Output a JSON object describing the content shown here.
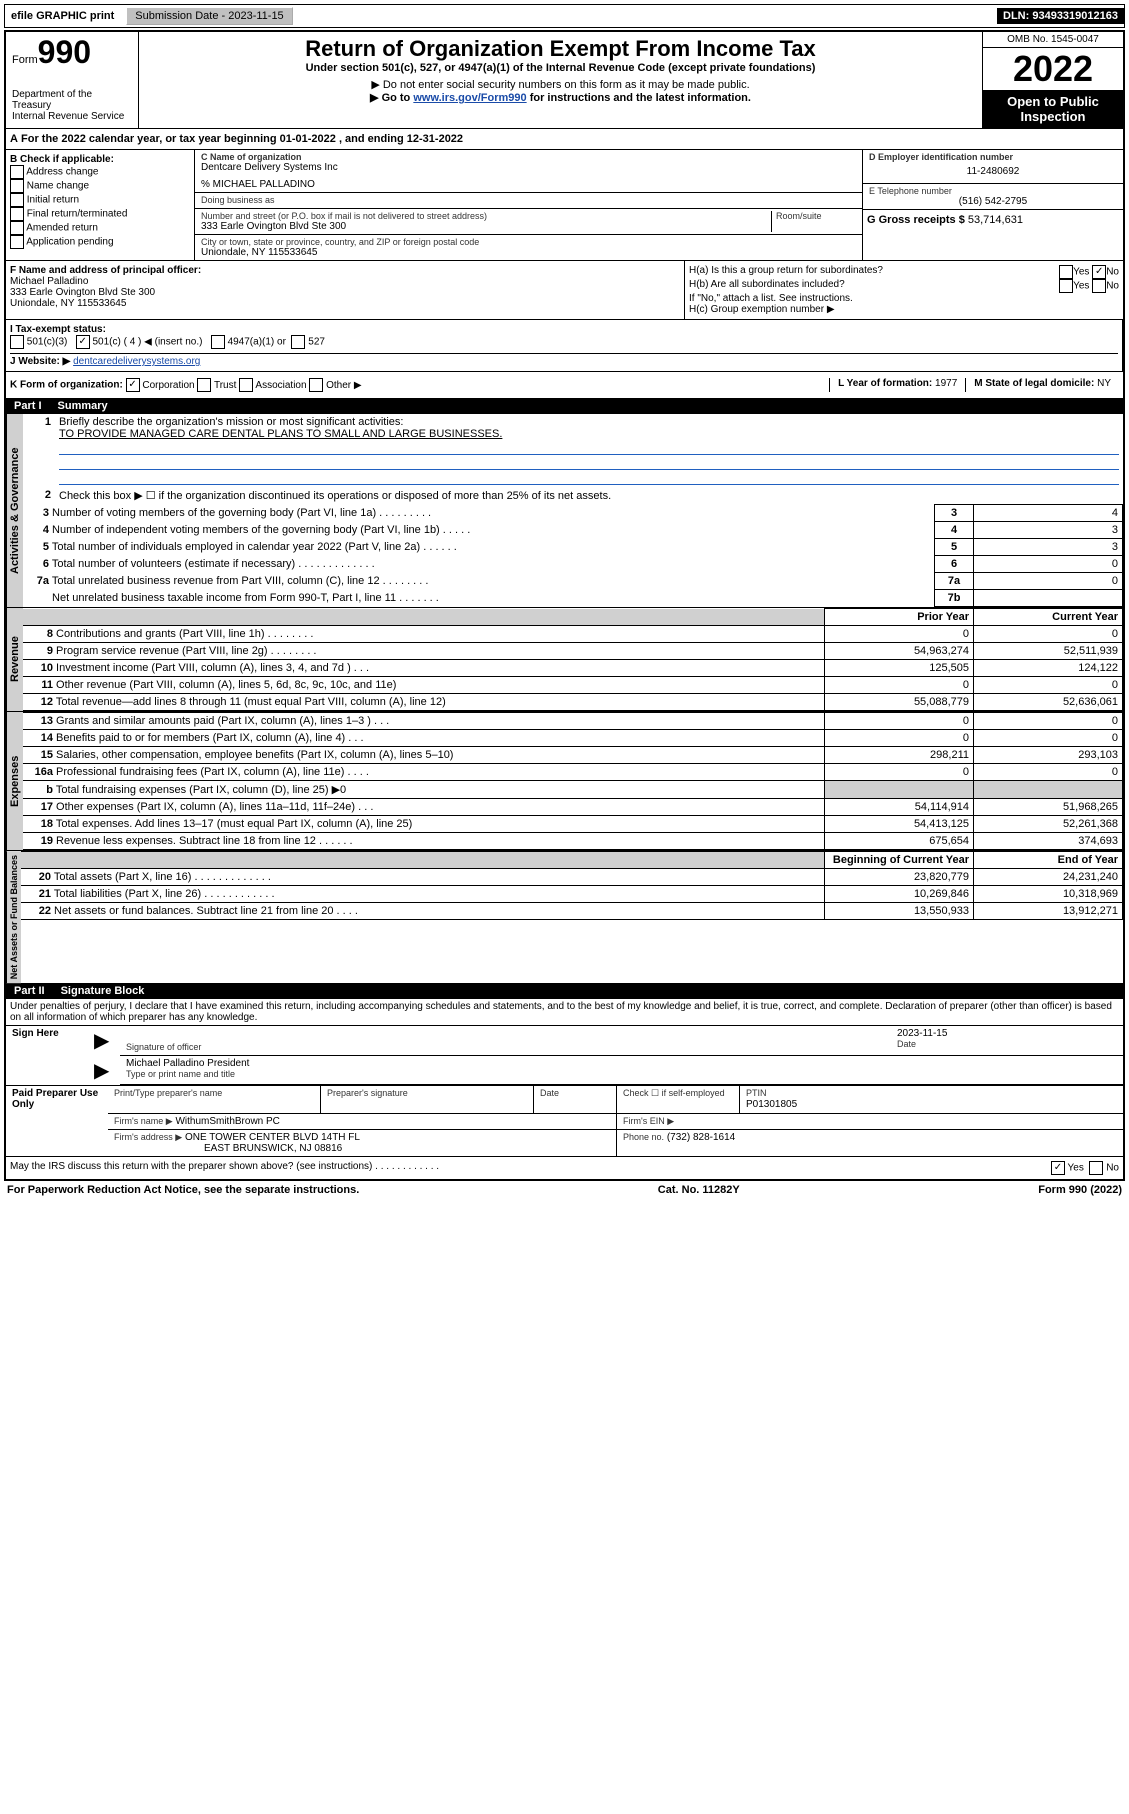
{
  "topbar": {
    "efile": "efile GRAPHIC print",
    "submission_label": "Submission Date - 2023-11-15",
    "dln": "DLN: 93493319012163"
  },
  "header": {
    "form_label": "Form",
    "form_number": "990",
    "dept": "Department of the Treasury",
    "irs": "Internal Revenue Service",
    "title": "Return of Organization Exempt From Income Tax",
    "subtitle": "Under section 501(c), 527, or 4947(a)(1) of the Internal Revenue Code (except private foundations)",
    "note1": "▶ Do not enter social security numbers on this form as it may be made public.",
    "note2_pre": "▶ Go to ",
    "note2_link": "www.irs.gov/Form990",
    "note2_post": " for instructions and the latest information.",
    "omb": "OMB No. 1545-0047",
    "year": "2022",
    "open": "Open to Public Inspection"
  },
  "period": {
    "line": "For the 2022 calendar year, or tax year beginning 01-01-2022   , and ending 12-31-2022"
  },
  "boxB": {
    "label": "B Check if applicable:",
    "items": [
      "Address change",
      "Name change",
      "Initial return",
      "Final return/terminated",
      "Amended return",
      "Application pending"
    ]
  },
  "boxC": {
    "label": "C Name of organization",
    "name": "Dentcare Delivery Systems Inc",
    "care_of": "% MICHAEL PALLADINO",
    "dba_label": "Doing business as",
    "street_label": "Number and street (or P.O. box if mail is not delivered to street address)",
    "room_label": "Room/suite",
    "street": "333 Earle Ovington Blvd Ste 300",
    "city_label": "City or town, state or province, country, and ZIP or foreign postal code",
    "city": "Uniondale, NY  115533645"
  },
  "boxD": {
    "label": "D Employer identification number",
    "value": "11-2480692"
  },
  "boxE": {
    "label": "E Telephone number",
    "value": "(516) 542-2795"
  },
  "boxG": {
    "label": "G Gross receipts $",
    "value": "53,714,631"
  },
  "boxF": {
    "label": "F Name and address of principal officer:",
    "name": "Michael Palladino",
    "addr1": "333 Earle Ovington Blvd Ste 300",
    "addr2": "Uniondale, NY  115533645"
  },
  "boxH": {
    "a": "H(a)  Is this a group return for subordinates?",
    "b": "H(b)  Are all subordinates included?",
    "b_note": "If \"No,\" attach a list. See instructions.",
    "c": "H(c)  Group exemption number ▶",
    "yes": "Yes",
    "no": "No"
  },
  "boxI": {
    "label": "I   Tax-exempt status:",
    "opt1": "501(c)(3)",
    "opt2": "501(c) ( 4 ) ◀ (insert no.)",
    "opt3": "4947(a)(1) or",
    "opt4": "527"
  },
  "boxJ": {
    "label": "J   Website: ▶",
    "value": "dentcaredeliverysystems.org"
  },
  "boxK": {
    "label": "K Form of organization:",
    "opts": [
      "Corporation",
      "Trust",
      "Association",
      "Other ▶"
    ]
  },
  "boxL": {
    "label": "L Year of formation:",
    "value": "1977"
  },
  "boxM": {
    "label": "M State of legal domicile:",
    "value": "NY"
  },
  "partI": {
    "title": "Part I",
    "name": "Summary",
    "l1_label": "Briefly describe the organization's mission or most significant activities:",
    "mission": "TO PROVIDE MANAGED CARE DENTAL PLANS TO SMALL AND LARGE BUSINESSES.",
    "l2": "Check this box ▶ ☐  if the organization discontinued its operations or disposed of more than 25% of its net assets.",
    "governance_rows": [
      {
        "n": "3",
        "t": "Number of voting members of the governing body (Part VI, line 1a)   .    .    .    .    .    .    .    .    .",
        "box": "3",
        "v": "4"
      },
      {
        "n": "4",
        "t": "Number of independent voting members of the governing body (Part VI, line 1b)   .    .    .    .    .",
        "box": "4",
        "v": "3"
      },
      {
        "n": "5",
        "t": "Total number of individuals employed in calendar year 2022 (Part V, line 2a)   .    .    .    .    .    .",
        "box": "5",
        "v": "3"
      },
      {
        "n": "6",
        "t": "Total number of volunteers (estimate if necessary)   .    .    .    .    .    .    .    .    .    .    .    .    .",
        "box": "6",
        "v": "0"
      },
      {
        "n": "7a",
        "t": "Total unrelated business revenue from Part VIII, column (C), line 12   .    .    .    .    .    .    .    .",
        "box": "7a",
        "v": "0"
      },
      {
        "n": "",
        "t": "Net unrelated business taxable income from Form 990-T, Part I, line 11   .    .    .    .    .    .    .",
        "box": "7b",
        "v": ""
      }
    ],
    "col_prior": "Prior Year",
    "col_current": "Current Year",
    "revenue_rows": [
      {
        "n": "8",
        "t": "Contributions and grants (Part VIII, line 1h)   .    .    .    .    .    .    .    .",
        "p": "0",
        "c": "0"
      },
      {
        "n": "9",
        "t": "Program service revenue (Part VIII, line 2g)   .    .    .    .    .    .    .    .",
        "p": "54,963,274",
        "c": "52,511,939"
      },
      {
        "n": "10",
        "t": "Investment income (Part VIII, column (A), lines 3, 4, and 7d )   .    .    .",
        "p": "125,505",
        "c": "124,122"
      },
      {
        "n": "11",
        "t": "Other revenue (Part VIII, column (A), lines 5, 6d, 8c, 9c, 10c, and 11e)",
        "p": "0",
        "c": "0"
      },
      {
        "n": "12",
        "t": "Total revenue—add lines 8 through 11 (must equal Part VIII, column (A), line 12)",
        "p": "55,088,779",
        "c": "52,636,061"
      }
    ],
    "expense_rows": [
      {
        "n": "13",
        "t": "Grants and similar amounts paid (Part IX, column (A), lines 1–3 )   .    .    .",
        "p": "0",
        "c": "0"
      },
      {
        "n": "14",
        "t": "Benefits paid to or for members (Part IX, column (A), line 4)   .    .    .",
        "p": "0",
        "c": "0"
      },
      {
        "n": "15",
        "t": "Salaries, other compensation, employee benefits (Part IX, column (A), lines 5–10)",
        "p": "298,211",
        "c": "293,103"
      },
      {
        "n": "16a",
        "t": "Professional fundraising fees (Part IX, column (A), line 11e)   .    .    .    .",
        "p": "0",
        "c": "0"
      },
      {
        "n": "b",
        "t": "Total fundraising expenses (Part IX, column (D), line 25) ▶0",
        "p": "shade",
        "c": "shade"
      },
      {
        "n": "17",
        "t": "Other expenses (Part IX, column (A), lines 11a–11d, 11f–24e)   .    .    .",
        "p": "54,114,914",
        "c": "51,968,265"
      },
      {
        "n": "18",
        "t": "Total expenses. Add lines 13–17 (must equal Part IX, column (A), line 25)",
        "p": "54,413,125",
        "c": "52,261,368"
      },
      {
        "n": "19",
        "t": "Revenue less expenses. Subtract line 18 from line 12   .    .    .    .    .    .",
        "p": "675,654",
        "c": "374,693"
      }
    ],
    "col_begin": "Beginning of Current Year",
    "col_end": "End of Year",
    "net_rows": [
      {
        "n": "20",
        "t": "Total assets (Part X, line 16)   .    .    .    .    .    .    .    .    .    .    .    .    .",
        "p": "23,820,779",
        "c": "24,231,240"
      },
      {
        "n": "21",
        "t": "Total liabilities (Part X, line 26)   .    .    .    .    .    .    .    .    .    .    .    .",
        "p": "10,269,846",
        "c": "10,318,969"
      },
      {
        "n": "22",
        "t": "Net assets or fund balances. Subtract line 21 from line 20   .    .    .    .",
        "p": "13,550,933",
        "c": "13,912,271"
      }
    ],
    "vlabels": {
      "gov": "Activities & Governance",
      "rev": "Revenue",
      "exp": "Expenses",
      "net": "Net Assets or Fund Balances"
    }
  },
  "partII": {
    "title": "Part II",
    "name": "Signature Block",
    "perjury": "Under penalties of perjury, I declare that I have examined this return, including accompanying schedules and statements, and to the best of my knowledge and belief, it is true, correct, and complete. Declaration of preparer (other than officer) is based on all information of which preparer has any knowledge.",
    "sign_here": "Sign Here",
    "sig_officer": "Signature of officer",
    "date": "Date",
    "sig_date": "2023-11-15",
    "officer_name": "Michael Palladino  President",
    "type_name": "Type or print name and title",
    "paid": "Paid Preparer Use Only",
    "prep_name_lbl": "Print/Type preparer's name",
    "prep_sig_lbl": "Preparer's signature",
    "date_lbl": "Date",
    "check_lbl": "Check ☐ if self-employed",
    "ptin_lbl": "PTIN",
    "ptin": "P01301805",
    "firm_name_lbl": "Firm's name    ▶",
    "firm_name": "WithumSmithBrown PC",
    "firm_ein_lbl": "Firm's EIN ▶",
    "firm_addr_lbl": "Firm's address ▶",
    "firm_addr1": "ONE TOWER CENTER BLVD 14TH FL",
    "firm_addr2": "EAST BRUNSWICK, NJ  08816",
    "phone_lbl": "Phone no.",
    "phone": "(732) 828-1614",
    "discuss": "May the IRS discuss this return with the preparer shown above? (see instructions)   .    .    .    .    .    .    .    .    .    .    .    .",
    "yes": "Yes",
    "no": "No"
  },
  "footer": {
    "pra": "For Paperwork Reduction Act Notice, see the separate instructions.",
    "cat": "Cat. No. 11282Y",
    "form": "Form 990 (2022)"
  }
}
